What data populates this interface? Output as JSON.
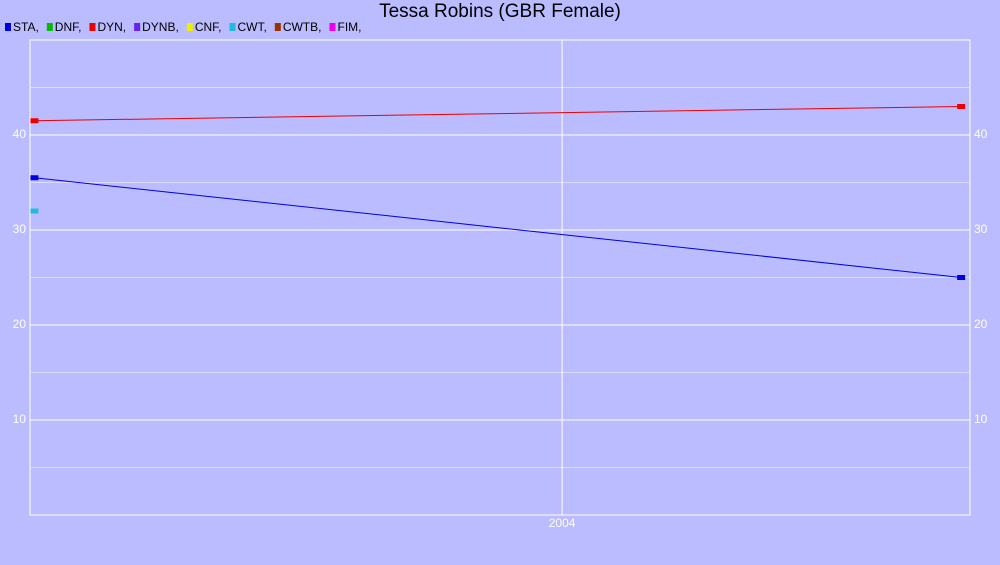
{
  "chart_data": {
    "type": "line",
    "title": "Tessa Robins (GBR Female)",
    "x": [
      2002.81,
      2004.9
    ],
    "xlim": [
      2002.8,
      2004.92
    ],
    "xticks": [
      2004
    ],
    "ylim": [
      0,
      50
    ],
    "yticks": [
      10,
      20,
      30,
      40
    ],
    "minor_yticks": [
      5,
      15,
      25,
      35,
      45
    ],
    "grid": true,
    "series": [
      {
        "name": "STA,",
        "color": "#0000dd",
        "values": [
          35.5,
          25
        ]
      },
      {
        "name": "DNF,",
        "color": "#00bb00",
        "values": [
          null,
          null
        ]
      },
      {
        "name": "DYN,",
        "color": "#ee0000",
        "values": [
          41.5,
          43
        ]
      },
      {
        "name": "DYNB,",
        "color": "#6622ee",
        "values": [
          null,
          null
        ]
      },
      {
        "name": "CNF,",
        "color": "#eeee00",
        "values": [
          null,
          null
        ]
      },
      {
        "name": "CWT,",
        "color": "#22bbdd",
        "values": [
          32,
          null
        ]
      },
      {
        "name": "CWTB,",
        "color": "#993300",
        "values": [
          null,
          null
        ]
      },
      {
        "name": "FIM,",
        "color": "#ee00ee",
        "values": [
          null,
          null
        ]
      }
    ]
  }
}
